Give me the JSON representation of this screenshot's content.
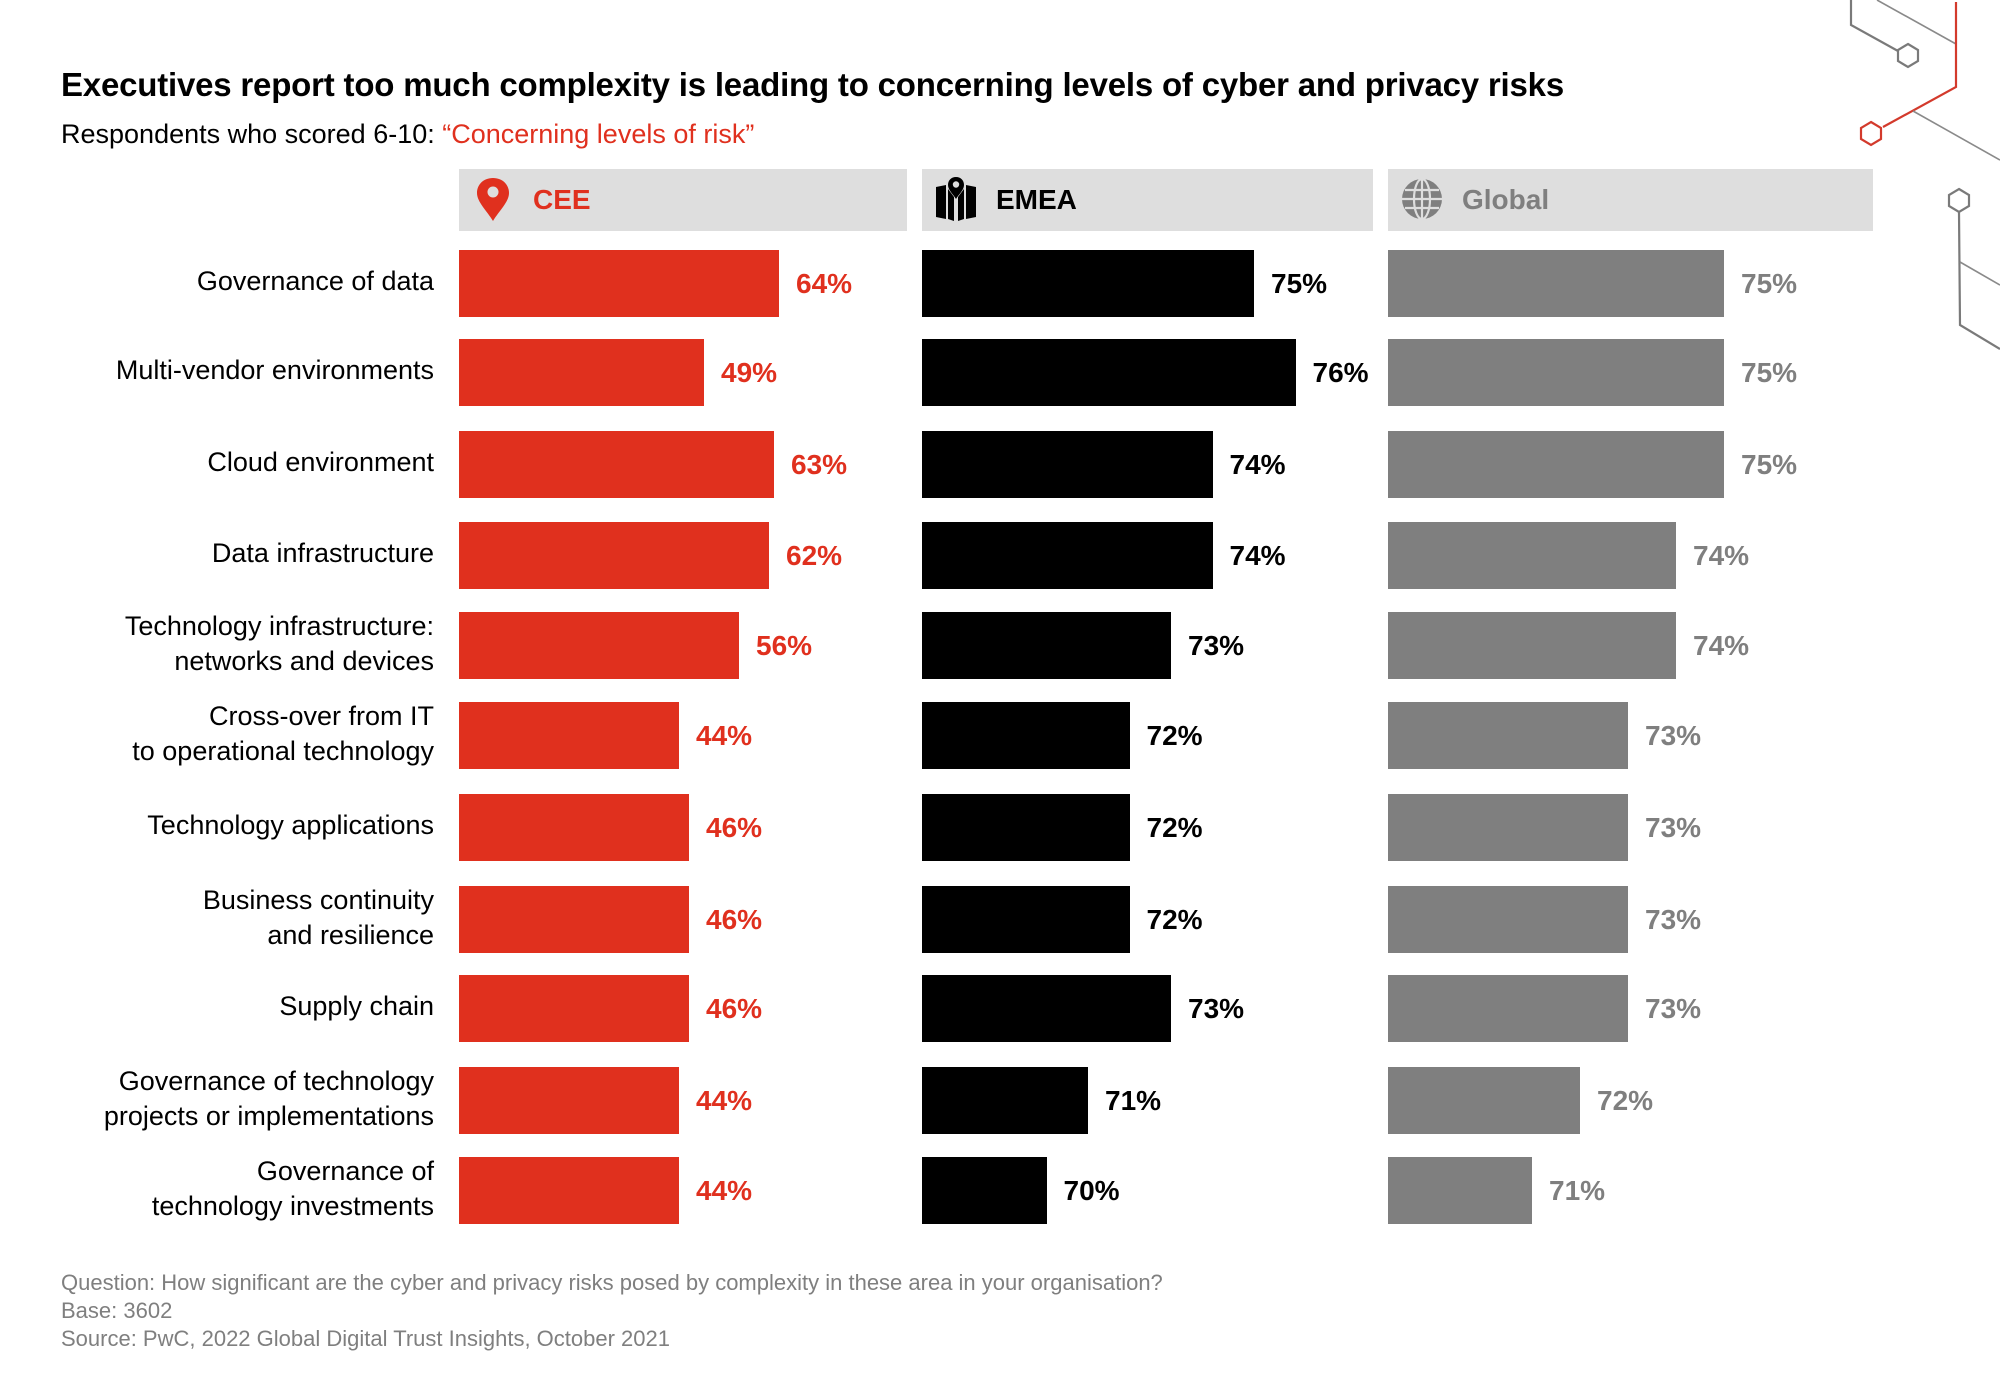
{
  "title": "Executives report too much complexity is leading to concerning levels of cyber and privacy risks",
  "subtitle": {
    "prefix": "Respondents who scored 6-10: ",
    "highlight": "“Concerning levels of risk”"
  },
  "colors": {
    "cee": "#e0301e",
    "emea": "#000000",
    "global": "#7f7f7f",
    "header_bg": "#dedede",
    "footer_text": "#7f7f7f"
  },
  "headers": [
    {
      "label": "CEE",
      "icon": "map-pin-icon"
    },
    {
      "label": "EMEA",
      "icon": "folded-map-icon"
    },
    {
      "label": "Global",
      "icon": "globe-icon"
    }
  ],
  "chart_data": {
    "type": "bar",
    "orientation": "horizontal",
    "title": "Executives report too much complexity is leading to concerning levels of cyber and privacy risks",
    "subtitle": "Respondents who scored 6-10: “Concerning levels of risk”",
    "xlabel": "",
    "ylabel": "",
    "unit": "%",
    "grid": false,
    "legend": "top (panel headers)",
    "categories": [
      [
        "Governance of data"
      ],
      [
        "Multi-vendor environments"
      ],
      [
        "Cloud environment"
      ],
      [
        "Data infrastructure"
      ],
      [
        "Technology infrastructure:",
        "networks and devices"
      ],
      [
        "Cross-over from IT",
        "to operational technology"
      ],
      [
        "Technology applications"
      ],
      [
        "Business continuity",
        "and resilience"
      ],
      [
        "Supply chain"
      ],
      [
        "Governance of technology",
        "projects or implementations"
      ],
      [
        "Governance of",
        "technology investments"
      ]
    ],
    "series": [
      {
        "name": "CEE",
        "color": "#e0301e",
        "axis_min": 0,
        "values": [
          64,
          49,
          63,
          62,
          56,
          44,
          46,
          46,
          46,
          44,
          44
        ]
      },
      {
        "name": "EMEA",
        "color": "#000000",
        "axis_min": 67,
        "values": [
          75,
          76,
          74,
          74,
          73,
          72,
          72,
          72,
          73,
          71,
          70
        ]
      },
      {
        "name": "Global",
        "color": "#7f7f7f",
        "axis_min": 68,
        "values": [
          75,
          75,
          75,
          74,
          74,
          73,
          73,
          73,
          73,
          72,
          71
        ]
      }
    ]
  },
  "footer": {
    "question": "Question: How significant are the cyber and privacy risks posed by complexity in these area in your organisation?",
    "base": "Base: 3602",
    "source": "Source: PwC, 2022 Global Digital Trust Insights, October 2021"
  }
}
